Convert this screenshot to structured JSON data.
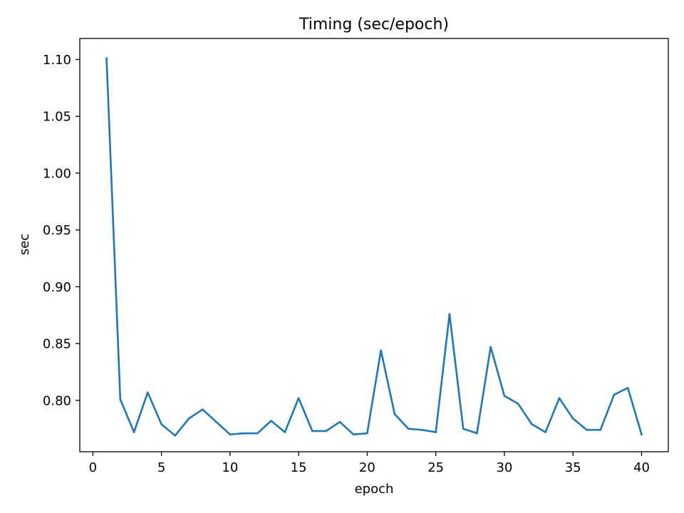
{
  "chart_data": {
    "type": "line",
    "title": "Timing (sec/epoch)",
    "xlabel": "epoch",
    "ylabel": "sec",
    "xlim": [
      -0.95,
      41.95
    ],
    "ylim": [
      0.7548,
      1.1185
    ],
    "x_ticks": [
      0,
      5,
      10,
      15,
      20,
      25,
      30,
      35,
      40
    ],
    "x_tick_labels": [
      "0",
      "5",
      "10",
      "15",
      "20",
      "25",
      "30",
      "35",
      "40"
    ],
    "y_ticks": [
      0.8,
      0.85,
      0.9,
      0.95,
      1.0,
      1.05,
      1.1
    ],
    "y_tick_labels": [
      "0.80",
      "0.85",
      "0.90",
      "0.95",
      "1.00",
      "1.05",
      "1.10"
    ],
    "grid": false,
    "color": "#1f77b4",
    "series": [
      {
        "x": [
          1,
          2,
          3,
          4,
          5,
          6,
          7,
          8,
          9,
          10,
          11,
          12,
          13,
          14,
          15,
          16,
          17,
          18,
          19,
          20,
          21,
          22,
          23,
          24,
          25,
          26,
          27,
          28,
          29,
          30,
          31,
          32,
          33,
          34,
          35,
          36,
          37,
          38,
          39,
          40
        ],
        "values": [
          1.101,
          0.801,
          0.772,
          0.807,
          0.779,
          0.769,
          0.784,
          0.792,
          0.781,
          0.77,
          0.771,
          0.771,
          0.782,
          0.772,
          0.802,
          0.773,
          0.773,
          0.781,
          0.77,
          0.771,
          0.844,
          0.788,
          0.775,
          0.774,
          0.772,
          0.876,
          0.775,
          0.771,
          0.847,
          0.804,
          0.797,
          0.779,
          0.772,
          0.802,
          0.784,
          0.774,
          0.774,
          0.805,
          0.811,
          0.77
        ]
      }
    ]
  }
}
